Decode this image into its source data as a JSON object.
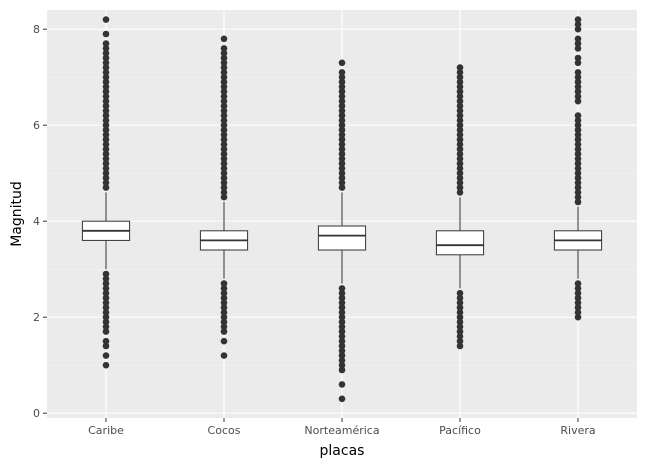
{
  "chart_data": {
    "type": "boxplot",
    "xlabel": "placas",
    "ylabel": "Magnitud",
    "categories": [
      "Caribe",
      "Cocos",
      "Norteamérica",
      "Pacífico",
      "Rivera"
    ],
    "ylim": [
      -0.1,
      8.4
    ],
    "yticks": [
      0,
      2,
      4,
      6,
      8
    ],
    "grid": true,
    "legend": "none",
    "boxes": [
      {
        "category": "Caribe",
        "whisker_low": 3.0,
        "q1": 3.6,
        "median": 3.8,
        "q3": 4.0,
        "whisker_high": 4.6,
        "outliers_low": [
          1.0,
          1.2,
          1.4,
          1.5,
          1.7,
          1.8,
          1.9,
          2.0,
          2.1,
          2.2,
          2.3,
          2.4,
          2.5,
          2.6,
          2.7,
          2.8,
          2.9
        ],
        "outliers_high": [
          4.7,
          4.8,
          4.9,
          5.0,
          5.1,
          5.2,
          5.3,
          5.4,
          5.5,
          5.6,
          5.7,
          5.8,
          5.9,
          6.0,
          6.1,
          6.2,
          6.3,
          6.4,
          6.5,
          6.6,
          6.7,
          6.8,
          6.9,
          7.0,
          7.1,
          7.2,
          7.3,
          7.4,
          7.5,
          7.6,
          7.7,
          7.9,
          8.2
        ]
      },
      {
        "category": "Cocos",
        "whisker_low": 2.8,
        "q1": 3.4,
        "median": 3.6,
        "q3": 3.8,
        "whisker_high": 4.4,
        "outliers_low": [
          1.2,
          1.5,
          1.7,
          1.8,
          1.9,
          2.0,
          2.1,
          2.2,
          2.3,
          2.4,
          2.5,
          2.6,
          2.7
        ],
        "outliers_high": [
          4.5,
          4.6,
          4.7,
          4.8,
          4.9,
          5.0,
          5.1,
          5.2,
          5.3,
          5.4,
          5.5,
          5.6,
          5.7,
          5.8,
          5.9,
          6.0,
          6.1,
          6.2,
          6.3,
          6.4,
          6.5,
          6.6,
          6.7,
          6.8,
          6.9,
          7.0,
          7.1,
          7.2,
          7.3,
          7.4,
          7.5,
          7.6,
          7.8
        ]
      },
      {
        "category": "Norteamérica",
        "whisker_low": 2.7,
        "q1": 3.4,
        "median": 3.7,
        "q3": 3.9,
        "whisker_high": 4.6,
        "outliers_low": [
          0.3,
          0.6,
          0.9,
          1.0,
          1.1,
          1.2,
          1.3,
          1.4,
          1.5,
          1.6,
          1.7,
          1.8,
          1.9,
          2.0,
          2.1,
          2.2,
          2.3,
          2.4,
          2.5,
          2.6
        ],
        "outliers_high": [
          4.7,
          4.8,
          4.9,
          5.0,
          5.1,
          5.2,
          5.3,
          5.4,
          5.5,
          5.6,
          5.7,
          5.8,
          5.9,
          6.0,
          6.1,
          6.2,
          6.3,
          6.4,
          6.5,
          6.6,
          6.7,
          6.8,
          6.9,
          7.0,
          7.1,
          7.3
        ]
      },
      {
        "category": "Pacífico",
        "whisker_low": 2.6,
        "q1": 3.3,
        "median": 3.5,
        "q3": 3.8,
        "whisker_high": 4.5,
        "outliers_low": [
          1.4,
          1.5,
          1.6,
          1.7,
          1.8,
          1.9,
          2.0,
          2.1,
          2.2,
          2.3,
          2.4,
          2.5
        ],
        "outliers_high": [
          4.6,
          4.7,
          4.8,
          4.9,
          5.0,
          5.1,
          5.2,
          5.3,
          5.4,
          5.5,
          5.6,
          5.7,
          5.8,
          5.9,
          6.0,
          6.1,
          6.2,
          6.3,
          6.4,
          6.5,
          6.6,
          6.7,
          6.8,
          6.9,
          7.0,
          7.1,
          7.2
        ]
      },
      {
        "category": "Rivera",
        "whisker_low": 2.8,
        "q1": 3.4,
        "median": 3.6,
        "q3": 3.8,
        "whisker_high": 4.3,
        "outliers_low": [
          2.0,
          2.1,
          2.2,
          2.3,
          2.4,
          2.5,
          2.6,
          2.7
        ],
        "outliers_high": [
          4.4,
          4.5,
          4.6,
          4.7,
          4.8,
          4.9,
          5.0,
          5.1,
          5.2,
          5.3,
          5.4,
          5.5,
          5.6,
          5.7,
          5.8,
          5.9,
          6.0,
          6.1,
          6.2,
          6.5,
          6.6,
          6.7,
          6.8,
          6.9,
          7.0,
          7.1,
          7.3,
          7.4,
          7.6,
          7.7,
          7.8,
          8.0,
          8.1,
          8.2
        ]
      }
    ]
  },
  "colors": {
    "panel_background": "#ebebeb",
    "grid_major": "#ffffff",
    "grid_minor": "#f5f5f5",
    "box_fill": "#ffffff",
    "box_line": "#333333",
    "outlier_point": "#333333",
    "tick_text": "#4d4d4d",
    "title_text": "#000000"
  }
}
